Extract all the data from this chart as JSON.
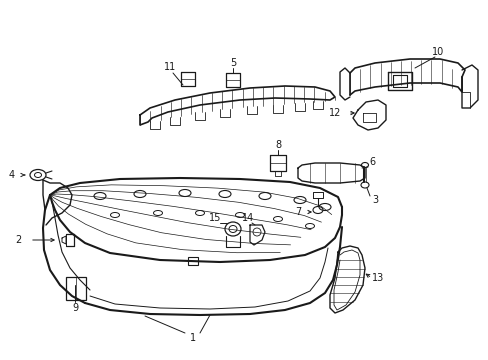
{
  "background_color": "#ffffff",
  "line_color": "#1a1a1a",
  "lw": 1.0,
  "fig_w": 4.89,
  "fig_h": 3.6,
  "dpi": 100
}
